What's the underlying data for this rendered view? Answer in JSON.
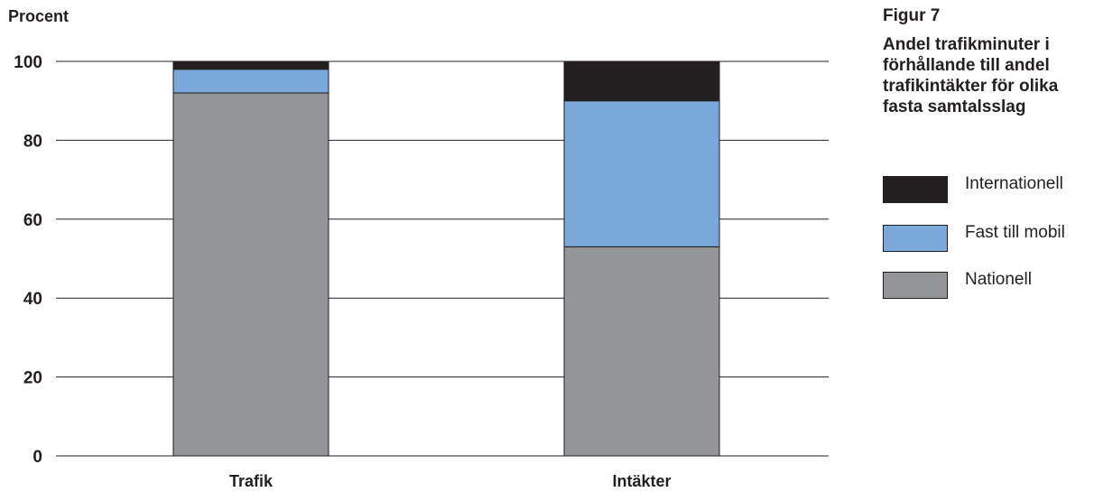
{
  "figure": {
    "number": "Figur 7",
    "title": "Andel trafikminuter i förhållande till andel trafikintäkter för olika fasta samtalsslag"
  },
  "legend": [
    {
      "label": "Internationell",
      "color": "#231f20"
    },
    {
      "label": "Fast till mobil",
      "color": "#7aa8db"
    },
    {
      "label": "Nationell",
      "color": "#939598"
    }
  ],
  "chart_data": {
    "type": "bar",
    "stacked": true,
    "categories": [
      "Trafik",
      "Intäkter"
    ],
    "ylabel": "Procent",
    "xlabel": "",
    "ylim": [
      0,
      100
    ],
    "yticks": [
      0,
      20,
      40,
      60,
      80,
      100
    ],
    "grid": true,
    "legend_position": "right",
    "series": [
      {
        "name": "Nationell",
        "color": "#939598",
        "values": [
          92,
          53
        ]
      },
      {
        "name": "Fast till mobil",
        "color": "#7aa8db",
        "values": [
          6,
          37
        ]
      },
      {
        "name": "Internationell",
        "color": "#231f20",
        "values": [
          2,
          10
        ]
      }
    ]
  }
}
